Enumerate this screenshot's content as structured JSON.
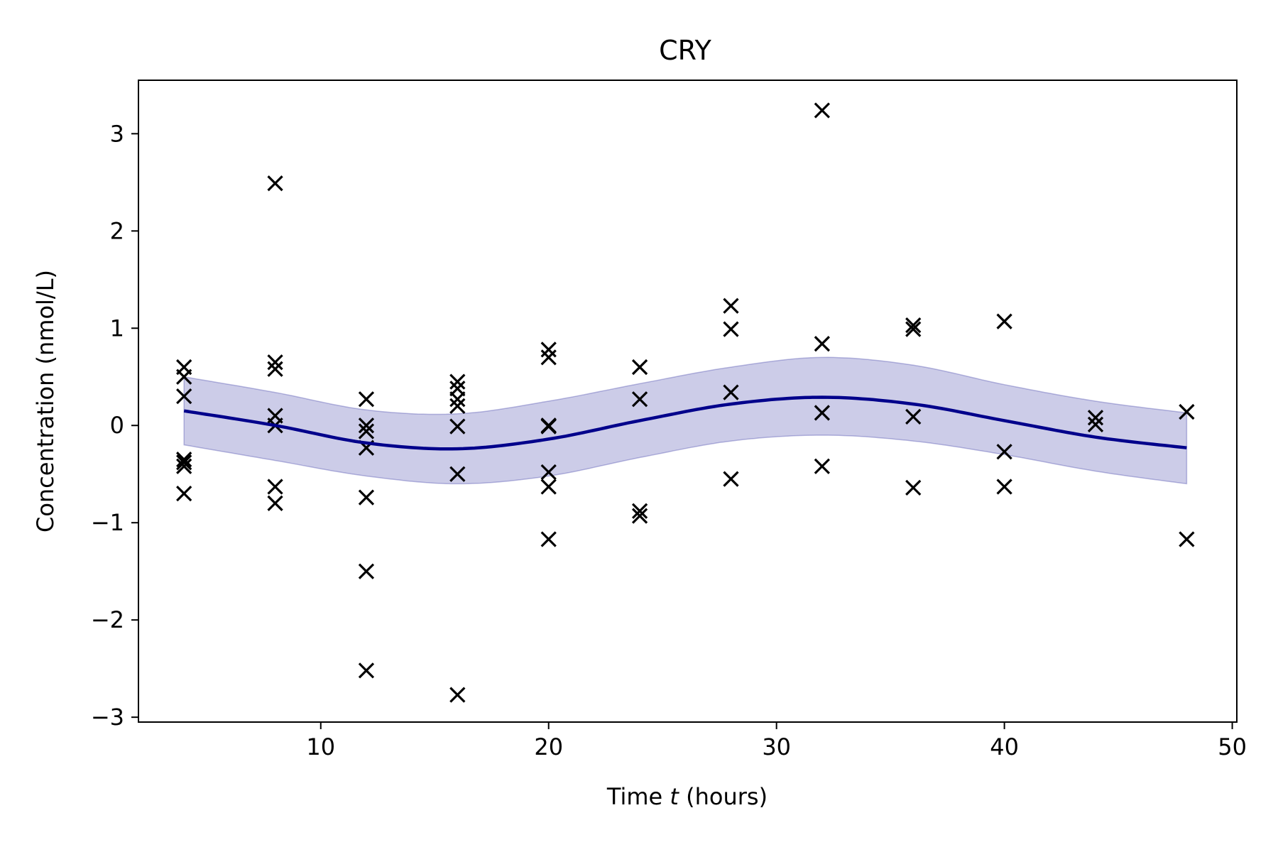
{
  "chart_data": {
    "type": "line",
    "title": "CRY",
    "xlabel_prefix": "Time ",
    "xlabel_var": "t",
    "xlabel_suffix": " (hours)",
    "ylabel": "Concentration (nmol/L)",
    "xlim": [
      2,
      50.2
    ],
    "ylim": [
      -3.05,
      3.55
    ],
    "xticks": [
      10,
      20,
      30,
      40,
      50
    ],
    "xtick_labels": [
      "10",
      "20",
      "30",
      "40",
      "50"
    ],
    "yticks": [
      -3,
      -2,
      -1,
      0,
      1,
      2,
      3
    ],
    "ytick_labels": [
      "−3",
      "−2",
      "−1",
      "0",
      "1",
      "2",
      "3"
    ],
    "grid": false,
    "colors": {
      "mean": "#00008b",
      "band": "#00008b",
      "points": "#000000"
    },
    "mean_curve": {
      "x": [
        4,
        8,
        12,
        16,
        20,
        24,
        28,
        32,
        36,
        40,
        44,
        48
      ],
      "y": [
        0.15,
        0.0,
        -0.18,
        -0.24,
        -0.14,
        0.05,
        0.22,
        0.29,
        0.22,
        0.05,
        -0.12,
        -0.23
      ]
    },
    "band": {
      "x": [
        4,
        8,
        12,
        16,
        20,
        24,
        28,
        32,
        36,
        40,
        44,
        48
      ],
      "lower": [
        -0.2,
        -0.36,
        -0.52,
        -0.6,
        -0.52,
        -0.33,
        -0.16,
        -0.1,
        -0.16,
        -0.3,
        -0.47,
        -0.6
      ],
      "upper": [
        0.5,
        0.34,
        0.16,
        0.12,
        0.25,
        0.43,
        0.6,
        0.7,
        0.62,
        0.42,
        0.25,
        0.13
      ]
    },
    "points": {
      "x": [
        4,
        4,
        4,
        4,
        4,
        4,
        4,
        8,
        8,
        8,
        8,
        8,
        8,
        8,
        12,
        12,
        12,
        12,
        12,
        12,
        12,
        16,
        16,
        16,
        16,
        16,
        16,
        16,
        20,
        20,
        20,
        20,
        20,
        20,
        20,
        24,
        24,
        24,
        24,
        28,
        28,
        28,
        28,
        32,
        32,
        32,
        32,
        36,
        36,
        36,
        36,
        40,
        40,
        40,
        44,
        44,
        48,
        48
      ],
      "y": [
        0.6,
        0.5,
        0.3,
        -0.35,
        -0.38,
        -0.42,
        -0.7,
        2.49,
        0.65,
        0.58,
        0.1,
        -0.63,
        -0.8,
        0.0,
        0.27,
        -0.06,
        -0.23,
        -0.74,
        -1.5,
        -2.52,
        0.0,
        0.45,
        0.38,
        0.27,
        0.2,
        -0.01,
        -0.5,
        -2.77,
        0.78,
        0.7,
        -0.01,
        -0.48,
        -0.63,
        -1.17,
        0.0,
        0.6,
        0.27,
        -0.88,
        -0.93,
        1.23,
        0.99,
        0.34,
        -0.55,
        3.24,
        0.84,
        0.13,
        -0.42,
        1.03,
        0.99,
        0.09,
        -0.64,
        1.07,
        -0.27,
        -0.63,
        0.08,
        0.01,
        0.14,
        -1.17
      ]
    }
  }
}
